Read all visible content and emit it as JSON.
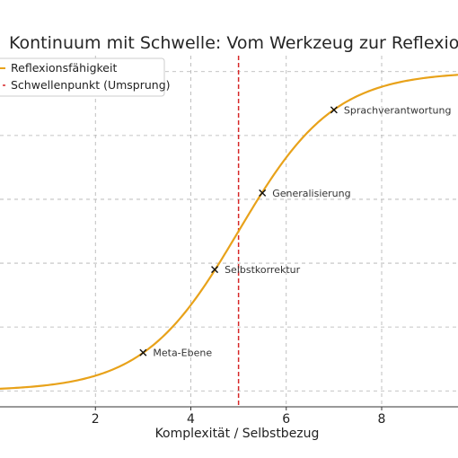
{
  "chart_data": {
    "type": "line",
    "title": "Kontinuum mit Schwelle: Vom Werkzeug zur Reflexion",
    "xlabel": "Komplexität / Selbstbezug",
    "ylabel": "",
    "xlim": [
      0,
      9.6
    ],
    "ylim": [
      -0.05,
      1.05
    ],
    "x_ticks": [
      2,
      4,
      6,
      8
    ],
    "grid": true,
    "legend": {
      "placement": "top-left",
      "entries": [
        "Reflexionsfähigkeit",
        "Schwellenpunkt (Umsprung)"
      ]
    },
    "series": [
      {
        "name": "Reflexionsfähigkeit",
        "kind": "sigmoid",
        "midpoint": 5,
        "steepness": 1.0,
        "color": "#e8a21a"
      }
    ],
    "threshold": {
      "name": "Schwellenpunkt (Umsprung)",
      "x": 5,
      "color": "#d62728"
    },
    "points": [
      {
        "label": "Meta-Ebene",
        "x": 3.0,
        "y": 0.12
      },
      {
        "label": "Selbstkorrektur",
        "x": 4.5,
        "y": 0.38
      },
      {
        "label": "Generalisierung",
        "x": 5.5,
        "y": 0.62
      },
      {
        "label": "Sprachverantwortung",
        "x": 7.0,
        "y": 0.88
      }
    ]
  }
}
